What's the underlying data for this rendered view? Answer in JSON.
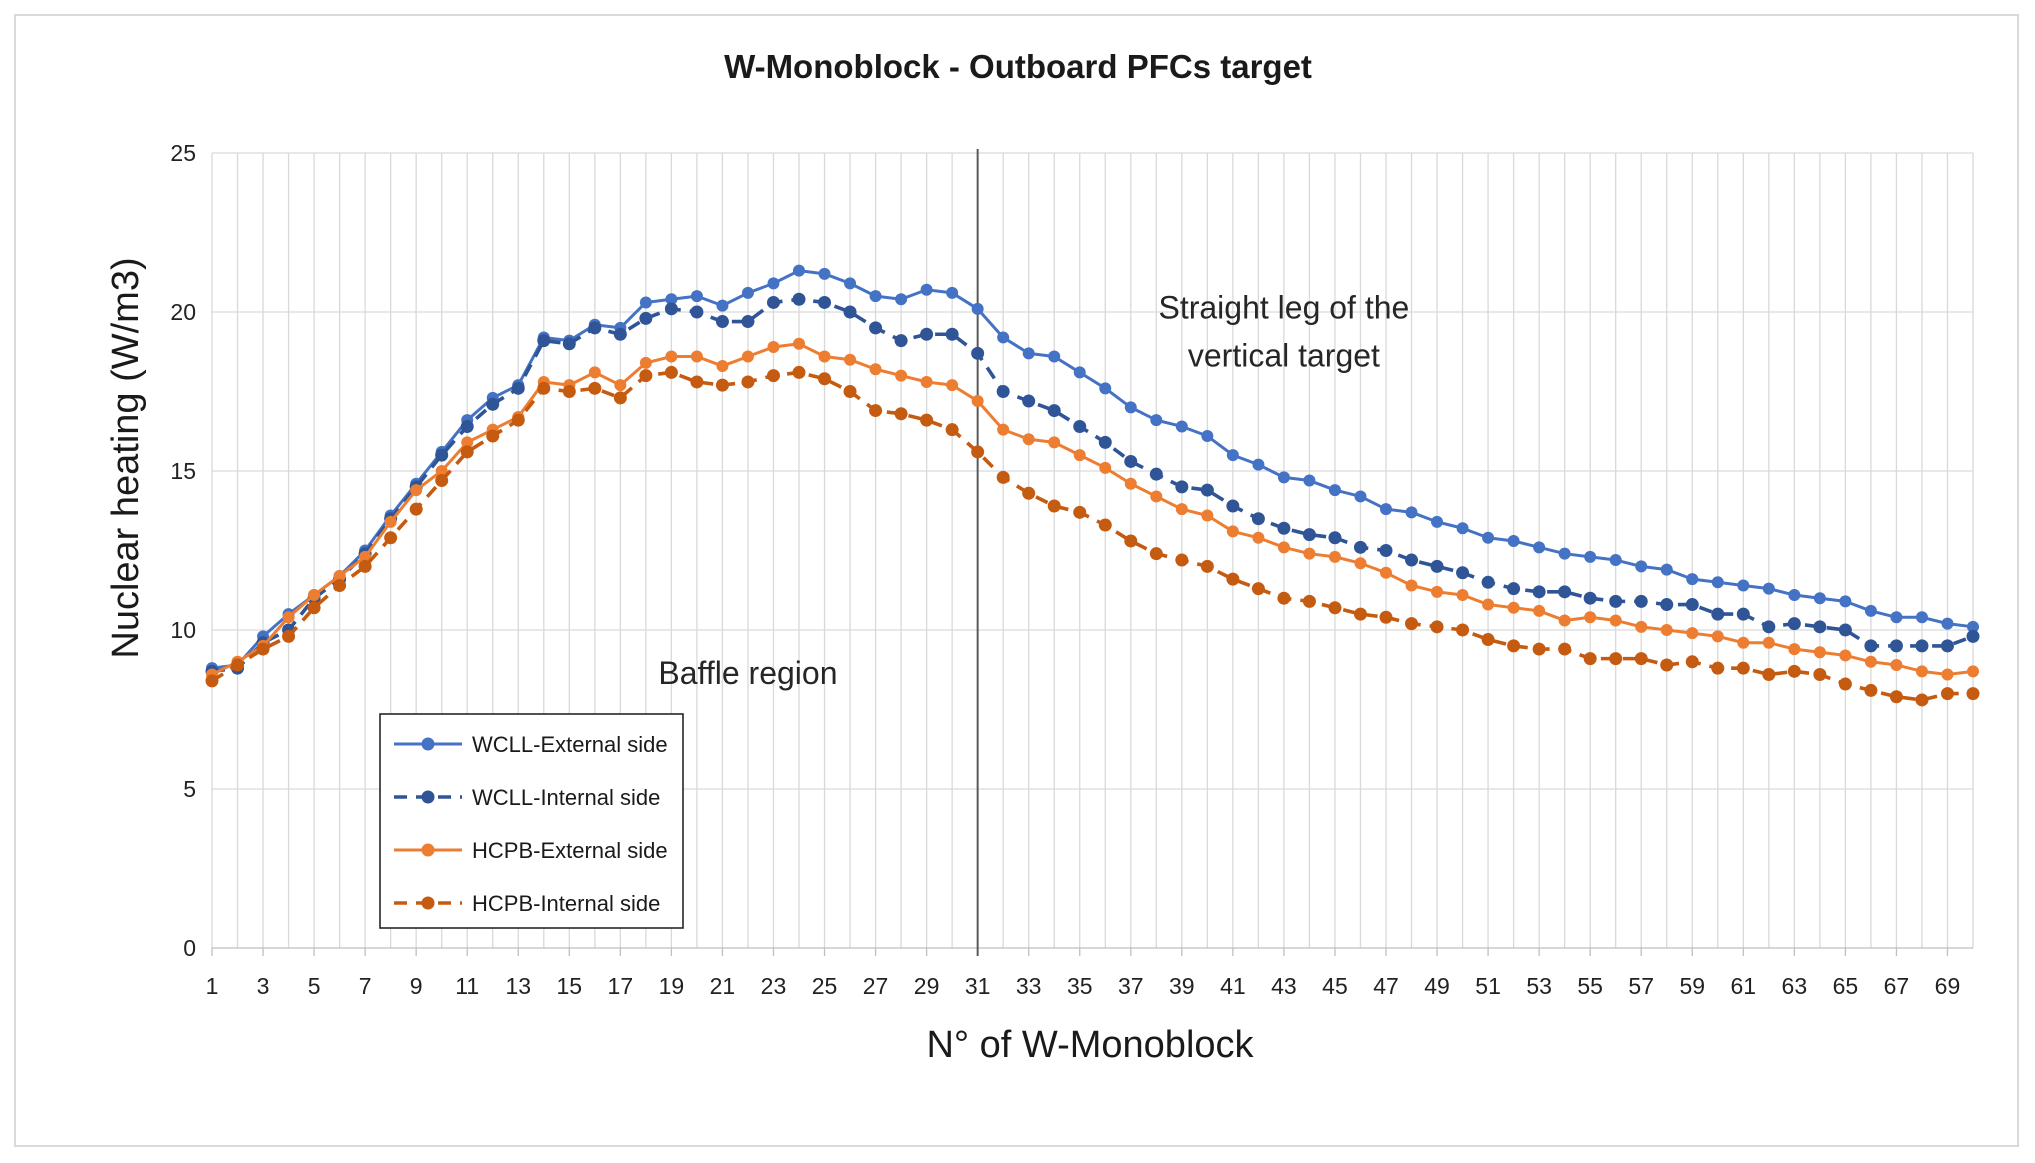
{
  "chart_data": {
    "type": "line",
    "title": "W-Monoblock - Outboard PFCs target",
    "xlabel": "N° of W-Monoblock",
    "ylabel": "Nuclear heating (W/m3)",
    "xlim": [
      1,
      70
    ],
    "ylim": [
      0,
      25
    ],
    "yticks": [
      0,
      5,
      10,
      15,
      20,
      25
    ],
    "xticks": [
      1,
      3,
      5,
      7,
      9,
      11,
      13,
      15,
      17,
      19,
      21,
      23,
      25,
      27,
      29,
      31,
      33,
      35,
      37,
      39,
      41,
      43,
      45,
      47,
      49,
      51,
      53,
      55,
      57,
      59,
      61,
      63,
      65,
      67,
      69
    ],
    "grid": true,
    "divider_x": 31,
    "annotations": [
      {
        "text": "Baffle region",
        "x": 22,
        "y": 8.3
      },
      {
        "text_lines": [
          "Straight leg of the",
          "vertical target"
        ],
        "x": 43,
        "y": 19.8
      }
    ],
    "legend_position": "lower-left",
    "series": [
      {
        "name": "WCLL-External side",
        "color": "#4472C4",
        "style": "solid",
        "values": [
          8.8,
          8.9,
          9.8,
          10.5,
          11.1,
          11.7,
          12.5,
          13.6,
          14.6,
          15.6,
          16.6,
          17.3,
          17.7,
          19.2,
          19.1,
          19.6,
          19.5,
          20.3,
          20.4,
          20.5,
          20.2,
          20.6,
          20.9,
          21.3,
          21.2,
          20.9,
          20.5,
          20.4,
          20.7,
          20.6,
          20.1,
          19.2,
          18.7,
          18.6,
          18.1,
          17.6,
          17.0,
          16.6,
          16.4,
          16.1,
          15.5,
          15.2,
          14.8,
          14.7,
          14.4,
          14.2,
          13.8,
          13.7,
          13.4,
          13.2,
          12.9,
          12.8,
          12.6,
          12.4,
          12.3,
          12.2,
          12.0,
          11.9,
          11.6,
          11.5,
          11.4,
          11.3,
          11.1,
          11.0,
          10.9,
          10.6,
          10.4,
          10.4,
          10.2,
          10.1
        ]
      },
      {
        "name": "WCLL-Internal side",
        "color": "#2F5597",
        "style": "dashed",
        "values": [
          8.7,
          8.8,
          9.6,
          10.0,
          11.0,
          11.6,
          12.4,
          13.5,
          14.5,
          15.5,
          16.4,
          17.1,
          17.6,
          19.1,
          19.0,
          19.5,
          19.3,
          19.8,
          20.1,
          20.0,
          19.7,
          19.7,
          20.3,
          20.4,
          20.3,
          20.0,
          19.5,
          19.1,
          19.3,
          19.3,
          18.7,
          17.5,
          17.2,
          16.9,
          16.4,
          15.9,
          15.3,
          14.9,
          14.5,
          14.4,
          13.9,
          13.5,
          13.2,
          13.0,
          12.9,
          12.6,
          12.5,
          12.2,
          12.0,
          11.8,
          11.5,
          11.3,
          11.2,
          11.2,
          11.0,
          10.9,
          10.9,
          10.8,
          10.8,
          10.5,
          10.5,
          10.1,
          10.2,
          10.1,
          10.0,
          9.5,
          9.5,
          9.5,
          9.5,
          9.8
        ]
      },
      {
        "name": "HCPB-External side",
        "color": "#ED7D31",
        "style": "solid",
        "values": [
          8.6,
          9.0,
          9.5,
          10.4,
          11.1,
          11.7,
          12.3,
          13.4,
          14.4,
          15.0,
          15.9,
          16.3,
          16.7,
          17.8,
          17.7,
          18.1,
          17.7,
          18.4,
          18.6,
          18.6,
          18.3,
          18.6,
          18.9,
          19.0,
          18.6,
          18.5,
          18.2,
          18.0,
          17.8,
          17.7,
          17.2,
          16.3,
          16.0,
          15.9,
          15.5,
          15.1,
          14.6,
          14.2,
          13.8,
          13.6,
          13.1,
          12.9,
          12.6,
          12.4,
          12.3,
          12.1,
          11.8,
          11.4,
          11.2,
          11.1,
          10.8,
          10.7,
          10.6,
          10.3,
          10.4,
          10.3,
          10.1,
          10.0,
          9.9,
          9.8,
          9.6,
          9.6,
          9.4,
          9.3,
          9.2,
          9.0,
          8.9,
          8.7,
          8.6,
          8.7
        ]
      },
      {
        "name": "HCPB-Internal side",
        "color": "#C55A11",
        "style": "dashed",
        "values": [
          8.4,
          8.9,
          9.4,
          9.8,
          10.7,
          11.4,
          12.0,
          12.9,
          13.8,
          14.7,
          15.6,
          16.1,
          16.6,
          17.6,
          17.5,
          17.6,
          17.3,
          18.0,
          18.1,
          17.8,
          17.7,
          17.8,
          18.0,
          18.1,
          17.9,
          17.5,
          16.9,
          16.8,
          16.6,
          16.3,
          15.6,
          14.8,
          14.3,
          13.9,
          13.7,
          13.3,
          12.8,
          12.4,
          12.2,
          12.0,
          11.6,
          11.3,
          11.0,
          10.9,
          10.7,
          10.5,
          10.4,
          10.2,
          10.1,
          10.0,
          9.7,
          9.5,
          9.4,
          9.4,
          9.1,
          9.1,
          9.1,
          8.9,
          9.0,
          8.8,
          8.8,
          8.6,
          8.7,
          8.6,
          8.3,
          8.1,
          7.9,
          7.8,
          8.0,
          8.0
        ]
      }
    ]
  }
}
